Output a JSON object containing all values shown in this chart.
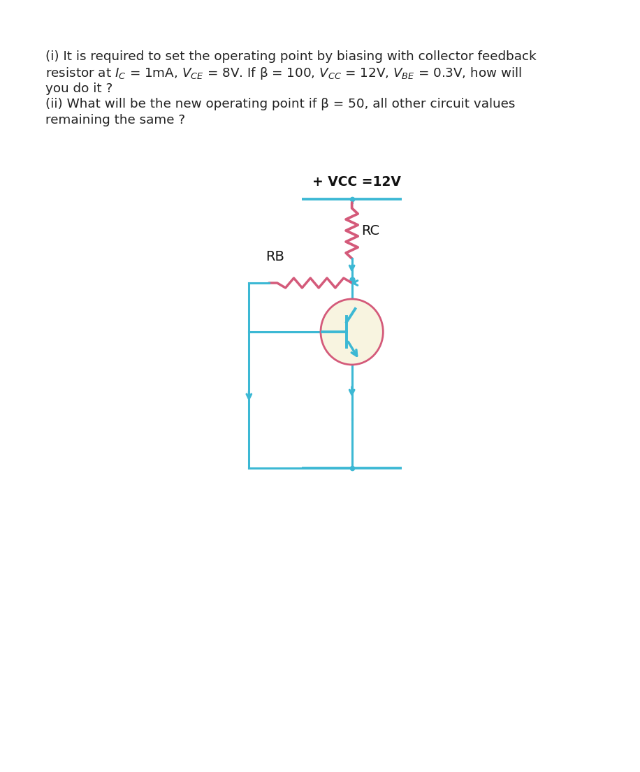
{
  "text_line1": "(i) It is required to set the operating point by biasing with collector feedback",
  "text_line2": "resistor at $I_C$ = 1mA, $V_{CE}$ = 8V. If β = 100, $V_{CC}$ = 12V, $V_{BE}$ = 0.3V, how will",
  "text_line3": "you do it ?",
  "text_line4": "(ii) What will be the new operating point if β = 50, all other circuit values",
  "text_line5": "remaining the same ?",
  "vcc_label": "+ VCC =12V",
  "rc_label": "RC",
  "rb_label": "RB",
  "circuit_color": "#3cb8d4",
  "resistor_color": "#d45a7a",
  "transistor_circle_edge": "#d45a7a",
  "transistor_fill": "#f8f4e0",
  "bg_color": "#ffffff",
  "text_color": "#222222",
  "lw": 2.2,
  "transistor_inner_color": "#3cb8d4",
  "font_size": 13.2
}
